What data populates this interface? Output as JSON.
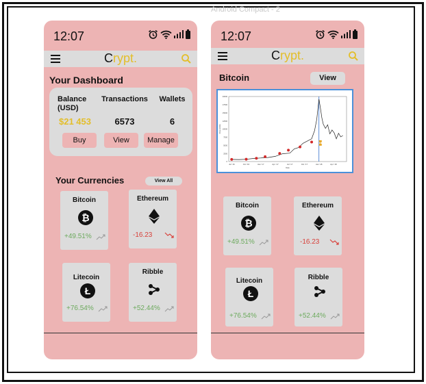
{
  "artboard_label": "Android Compact - 2",
  "status": {
    "time": "12:07"
  },
  "brand": {
    "first": "C",
    "rest": "rypt."
  },
  "icons": {
    "menu": "hamburger-icon",
    "search": "search-icon",
    "alarm": "alarm-icon",
    "wifi": "wifi-icon",
    "signal": "signal-icon",
    "battery": "battery-icon"
  },
  "colors": {
    "phone_bg": "#edb4b4",
    "panel": "#dcdcdc",
    "accent": "#e3be2a",
    "positive": "#6daa5e",
    "negative": "#d8403a",
    "chart_border": "#4a90d9"
  },
  "dashboard": {
    "title": "Your Dashboard",
    "balance": {
      "label_line1": "Balance",
      "label_line2": "(USD)",
      "value": "$21 453"
    },
    "transactions": {
      "label": "Transactions",
      "value": "6573"
    },
    "wallets": {
      "label": "Wallets",
      "value": "6"
    },
    "buttons": {
      "buy": "Buy",
      "view": "View",
      "manage": "Manage"
    }
  },
  "currencies": {
    "title": "Your Currencies",
    "view_all": "View All",
    "items": [
      {
        "name": "Bitcoin",
        "icon": "bitcoin-icon",
        "change": "+49.51%",
        "direction": "up"
      },
      {
        "name": "Ethereum",
        "icon": "ethereum-icon",
        "change": "-16.23",
        "direction": "down"
      },
      {
        "name": "Litecoin",
        "icon": "litecoin-icon",
        "change": "+76.54%",
        "direction": "up"
      },
      {
        "name": "Ribble",
        "icon": "ripple-icon",
        "change": "+52.44%",
        "direction": "up"
      }
    ]
  },
  "detail": {
    "title": "Bitcoin",
    "view": "View"
  },
  "chart_data": {
    "type": "line",
    "x_ticks": [
      "Jul '16",
      "Oct '16",
      "Jan '17",
      "Apr '17",
      "Jul '17",
      "Oct '17",
      "Jan '18",
      "Apr '18"
    ],
    "y_ticks": [
      "0",
      "2500",
      "5000",
      "7500",
      "10000",
      "12500",
      "15000",
      "17500",
      "20000"
    ],
    "xlabel": "Date",
    "ylabel": "Price (USD)",
    "x": [
      0,
      0.5,
      1,
      1.5,
      2,
      2.5,
      3,
      3.5,
      4,
      4.3,
      4.6,
      4.9,
      5.2,
      5.5,
      5.7,
      5.85,
      6.0,
      6.1,
      6.2,
      6.3,
      6.45,
      6.6,
      6.75,
      6.9,
      7.05,
      7.2,
      7.35,
      7.5,
      7.65
    ],
    "values": [
      650,
      620,
      700,
      950,
      1100,
      1250,
      1600,
      2400,
      2600,
      3900,
      4300,
      5600,
      6300,
      7000,
      9500,
      13000,
      19200,
      16500,
      13500,
      11500,
      10200,
      11300,
      8500,
      9700,
      8800,
      7000,
      8700,
      7600,
      8000
    ],
    "markers_x": [
      0,
      1,
      1.7,
      2.3,
      3.3,
      3.9,
      4.7,
      5.5
    ],
    "markers_y": [
      650,
      700,
      1000,
      1500,
      2500,
      3500,
      4500,
      6000
    ],
    "ylim": [
      0,
      20000
    ],
    "xlim": [
      -0.2,
      7.9
    ],
    "vline_x": 6.0,
    "annotation_x": 6.1,
    "annotation_y": 5500
  }
}
